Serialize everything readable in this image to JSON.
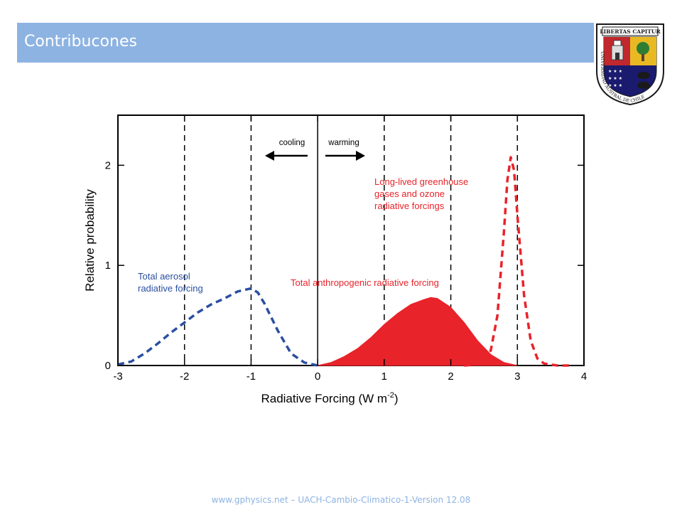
{
  "slide": {
    "title": "Contribucones",
    "footer": "www.gphysics.net – UACH-Cambio-Climatico-1-Version 12.08",
    "crest": {
      "motto": "LIBERTAS CAPITUR",
      "ribbon_text": "UNIVERSIDAD AUSTRAL DE CHILE",
      "colors": {
        "blue": "#1a1a6e",
        "red": "#c0282d",
        "gold": "#e8b923",
        "green": "#2e7d32"
      }
    }
  },
  "chart_data": {
    "type": "line",
    "title": "",
    "xlabel": "Radiative Forcing  (W m-2)",
    "ylabel": "Relative probability",
    "xlim": [
      -3,
      4
    ],
    "ylim": [
      0,
      2.5
    ],
    "x_ticks": [
      "-3",
      "-2",
      "-1",
      "0",
      "1",
      "2",
      "3",
      "4"
    ],
    "y_ticks": [
      "0",
      "1",
      "2"
    ],
    "dashed_gridlines_x": [
      -2,
      -1,
      1,
      2,
      3
    ],
    "solid_line_x": 0,
    "arrows": {
      "cooling": "cooling",
      "warming": "warming"
    },
    "series": [
      {
        "name": "Total aerosol radiative forcing",
        "label_lines": [
          "Total aerosol",
          "radiative forcing"
        ],
        "style": "dashed",
        "color": "#2a4fa0",
        "x": [
          -3.0,
          -2.8,
          -2.6,
          -2.4,
          -2.2,
          -2.0,
          -1.8,
          -1.6,
          -1.4,
          -1.2,
          -1.0,
          -0.9,
          -0.8,
          -0.6,
          -0.4,
          -0.2,
          0.0
        ],
        "y": [
          0.01,
          0.04,
          0.12,
          0.22,
          0.33,
          0.43,
          0.53,
          0.61,
          0.67,
          0.74,
          0.77,
          0.73,
          0.62,
          0.35,
          0.12,
          0.03,
          0.0
        ]
      },
      {
        "name": "Total anthropogenic radiative forcing",
        "label_lines": [
          "Total anthropogenic radiative forcing"
        ],
        "style": "filled",
        "color": "#e8232a",
        "x": [
          0.0,
          0.2,
          0.4,
          0.6,
          0.8,
          1.0,
          1.2,
          1.4,
          1.6,
          1.7,
          1.8,
          2.0,
          2.2,
          2.4,
          2.6,
          2.8,
          3.0
        ],
        "y": [
          0.0,
          0.03,
          0.09,
          0.17,
          0.28,
          0.41,
          0.52,
          0.61,
          0.66,
          0.68,
          0.67,
          0.58,
          0.43,
          0.25,
          0.11,
          0.03,
          0.0
        ]
      },
      {
        "name": "Long-lived greenhouse gases and ozone radiative forcings",
        "label_lines": [
          "Long-lived greenhouse",
          "gases and ozone",
          "radiative forcings"
        ],
        "style": "dashed",
        "color": "#e8232a",
        "x": [
          2.2,
          2.4,
          2.5,
          2.6,
          2.7,
          2.8,
          2.85,
          2.9,
          2.95,
          3.0,
          3.1,
          3.2,
          3.3,
          3.4,
          3.6,
          3.8
        ],
        "y": [
          0.0,
          0.01,
          0.04,
          0.15,
          0.5,
          1.35,
          1.85,
          2.08,
          1.95,
          1.5,
          0.7,
          0.25,
          0.07,
          0.02,
          0.0,
          0.0
        ]
      }
    ]
  }
}
